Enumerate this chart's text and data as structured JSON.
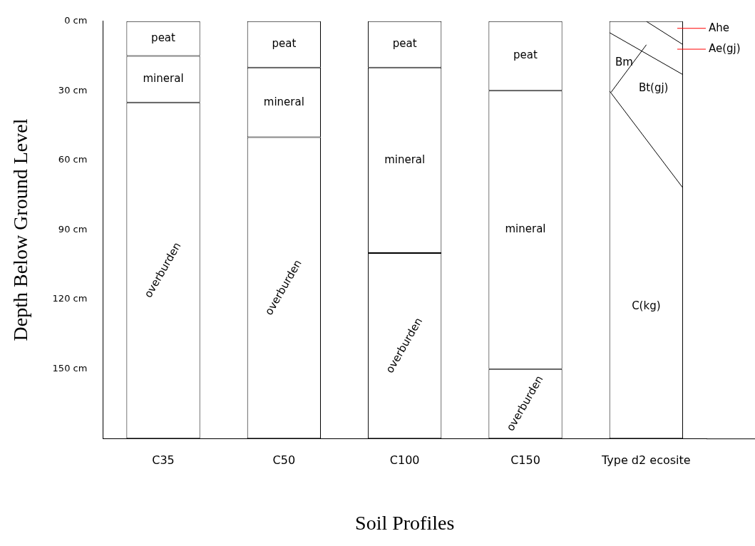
{
  "chart_data": {
    "type": "bar",
    "stacked": true,
    "xlabel": "Soil Profiles",
    "ylabel": "Depth Below Ground Level",
    "categories": [
      "C35",
      "C50",
      "C100",
      "C150",
      "Type d2 ecosite"
    ],
    "series": [
      {
        "color": "#ffffff",
        "values": [
          15,
          20,
          20,
          30,
          null
        ],
        "value_labels": [
          "peat",
          "peat",
          "peat",
          "peat",
          null
        ]
      },
      {
        "color": "#ffffff",
        "values": [
          20,
          30,
          80,
          120,
          null
        ],
        "value_labels": [
          "mineral",
          "mineral",
          "mineral",
          "mineral",
          null
        ]
      },
      {
        "color": "#ffffff",
        "values": [
          145,
          130,
          80,
          30,
          null
        ],
        "value_labels": [
          "overburden",
          "overburden",
          "overburden",
          "overburden",
          null
        ]
      },
      {
        "color": "#ffffff",
        "values": [
          null,
          null,
          null,
          null,
          180
        ]
      }
    ],
    "annotations": [
      "Ahe",
      "Ae(gj)",
      "Bm",
      "Bt(gj)",
      "C(kg)"
    ],
    "ylim": [
      180,
      0
    ],
    "yticks": [
      {
        "value": 0,
        "label": "0 cm"
      },
      {
        "value": 30,
        "label": "30 cm"
      },
      {
        "value": 60,
        "label": "60 cm"
      },
      {
        "value": 90,
        "label": "90 cm"
      },
      {
        "value": 120,
        "label": "120 cm"
      },
      {
        "value": 150,
        "label": "150 cm"
      }
    ],
    "grid": false,
    "legend": false
  }
}
